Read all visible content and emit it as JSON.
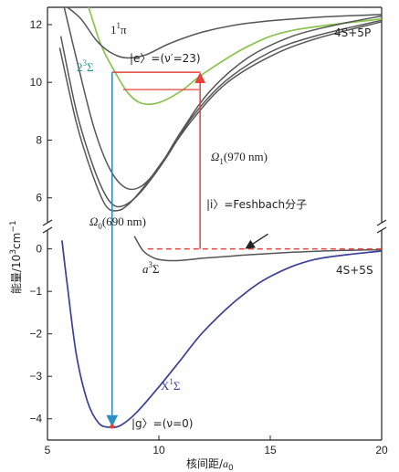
{
  "chart_data": {
    "type": "line",
    "xlabel": "核间距/a₀",
    "xlabel_main": "核间距/",
    "xlabel_sym": "a",
    "xlabel_sub": "0",
    "ylabel": "能量/10³cm⁻¹",
    "ylabel_main": "能量/10",
    "ylabel_sup": "3",
    "ylabel_unit": "cm",
    "ylabel_unit_sup": "−1",
    "xlim": [
      5,
      20
    ],
    "ylim_lower": [
      -4.5,
      0.4
    ],
    "ylim_upper": [
      5.2,
      12.6
    ],
    "axis_break": true,
    "x_ticks": [
      5,
      10,
      15,
      20
    ],
    "y_ticks_lower": [
      -4,
      -3,
      -2,
      -1,
      0
    ],
    "y_ticks_upper": [
      6,
      8,
      10,
      12
    ],
    "series": [
      {
        "name": "X¹Σ",
        "color": "#3a3f98",
        "x": [
          5.65,
          5.9,
          6.3,
          6.8,
          7.3,
          7.8,
          8.3,
          9,
          10,
          11,
          12,
          13.5,
          15,
          17,
          20
        ],
        "y": [
          0.2,
          -0.9,
          -2.5,
          -3.6,
          -4.1,
          -4.2,
          -4.15,
          -3.85,
          -3.25,
          -2.6,
          -1.95,
          -1.2,
          -0.65,
          -0.25,
          -0.05
        ]
      },
      {
        "name": "a³Σ",
        "color": "#555555",
        "x": [
          8.9,
          9.3,
          9.8,
          10.3,
          11,
          12,
          13,
          14,
          16,
          18,
          20
        ],
        "y": [
          0.3,
          -0.05,
          -0.22,
          -0.27,
          -0.27,
          -0.22,
          -0.18,
          -0.14,
          -0.08,
          -0.04,
          -0.02
        ]
      },
      {
        "name": "2³Σ",
        "color": "#8ac44e",
        "x": [
          6.85,
          7.4,
          8,
          8.6,
          9.2,
          10,
          11,
          12,
          14,
          16,
          20
        ],
        "y": [
          12.6,
          11.3,
          10.4,
          9.65,
          9.28,
          9.3,
          9.7,
          10.3,
          11.25,
          11.8,
          12.2
        ]
      },
      {
        "name": "1¹π",
        "color": "#555555",
        "x": [
          5.9,
          6.5,
          7.2,
          7.8,
          8.5,
          9.4,
          10.5,
          12,
          14,
          17,
          20
        ],
        "y": [
          12.6,
          12.2,
          11.45,
          11.05,
          10.85,
          10.95,
          11.35,
          11.75,
          12.05,
          12.25,
          12.35
        ]
      },
      {
        "name": "",
        "color": "#555555",
        "x": [
          5.55,
          6.3,
          7,
          7.6,
          8.1,
          8.6,
          9.3,
          10.2,
          11.5,
          13,
          15,
          17,
          20
        ],
        "y": [
          11.2,
          8.6,
          6.85,
          5.75,
          5.55,
          5.75,
          6.35,
          7.3,
          8.7,
          9.95,
          10.9,
          11.5,
          12.1
        ]
      },
      {
        "name": "",
        "color": "#555555",
        "x": [
          5.6,
          6.3,
          7,
          7.6,
          8.1,
          8.7,
          9.4,
          10.3,
          11.5,
          13,
          15,
          17,
          20
        ],
        "y": [
          11.6,
          9.0,
          7.2,
          6.1,
          5.7,
          5.85,
          6.4,
          7.35,
          8.8,
          10.05,
          11.05,
          11.6,
          12.15
        ]
      },
      {
        "name": "",
        "color": "#555555",
        "x": [
          5.75,
          6.4,
          7.1,
          7.8,
          8.5,
          9.2,
          10,
          11,
          12.3,
          14,
          16,
          18,
          20
        ],
        "y": [
          12.6,
          10.5,
          8.4,
          7.0,
          6.35,
          6.4,
          7.05,
          8.3,
          9.7,
          10.85,
          11.6,
          12.0,
          12.3
        ]
      }
    ],
    "annotations": {
      "pi_label": "1¹π",
      "pi_label_main": "1",
      "pi_label_sup": "1",
      "pi_label_sym": "π",
      "sigma_green": "2³Σ",
      "sigma_green_main": "2",
      "sigma_green_sup": "3",
      "sigma_green_sym": "Σ",
      "asym_upper": "4S+5P",
      "e_state": "|e〉=(ν′=23)",
      "omega1": "Ω₁(970 nm)",
      "omega1_sym": "Ω",
      "omega1_sub": "1",
      "omega1_text": "(970 nm)",
      "feshbach": "|i〉=Feshbach分子",
      "omega0": "Ω₀(690 nm)",
      "omega0_sym": "Ω",
      "omega0_sub": "0",
      "omega0_text": "(690 nm)",
      "a3sigma": "a³Σ",
      "a3sigma_main": "a",
      "a3sigma_sup": "3",
      "a3sigma_sym": "Σ",
      "asym_lower": "4S+5S",
      "x1sigma": "X¹Σ",
      "x1sigma_main": "X",
      "x1sigma_sup": "1",
      "x1sigma_sym": "Σ",
      "g_state": "|g〉=(ν=0)"
    },
    "transitions": {
      "omega0_x": 7.9,
      "omega0_y_top": 10.35,
      "omega0_y_bottom": -4.18,
      "omega1_x": 11.85,
      "omega1_y_bottom": 0.0,
      "omega1_y_top": 10.35,
      "e_level_y": 10.35,
      "e_level_x": [
        7.9,
        11.85
      ],
      "lower_level_y": 9.75,
      "lower_level_x": [
        8.4,
        11.8
      ],
      "feshbach_level_y": 0.0,
      "feshbach_level_x": [
        9.5,
        20
      ]
    },
    "grid": false,
    "legend": "none"
  }
}
